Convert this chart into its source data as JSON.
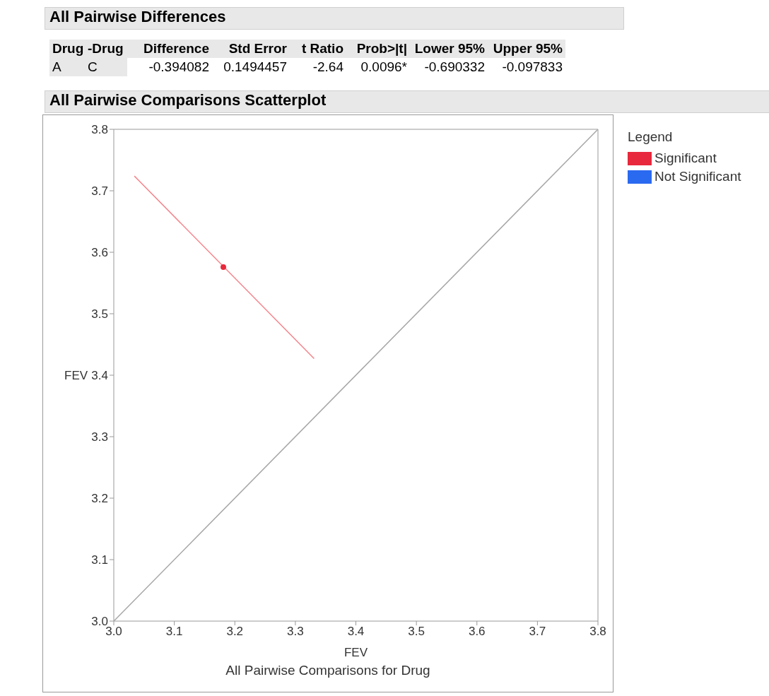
{
  "chart_data": {
    "type": "scatter",
    "title": "All Pairwise Comparisons Scatterplot",
    "xlabel": "FEV",
    "ylabel": "FEV",
    "legend_title": "Legend",
    "legend": "right",
    "xlim": [
      3.0,
      3.8
    ],
    "xticks": [
      {
        "value": 3.0,
        "label": "3.0"
      },
      3.1,
      3.2,
      3.3,
      3.4,
      3.5,
      3.6,
      3.7,
      {
        "value": 3.8,
        "label": "3.8"
      }
    ],
    "ylim": [
      3.0,
      3.8
    ],
    "yticks": [
      {
        "value": 3.0,
        "label": "3.0"
      },
      3.1,
      3.2,
      3.3,
      3.4,
      3.5,
      3.6,
      3.7,
      {
        "value": 3.8,
        "label": "3.8"
      }
    ],
    "series": [
      {
        "type": "line",
        "marker": "none",
        "color": "#a6a6a6",
        "x": [
          3.0,
          3.8
        ],
        "values": [
          3.0,
          3.8
        ]
      },
      {
        "type": "line",
        "marker": "none",
        "color": "#f4848c",
        "x": [
          3.034,
          3.331
        ],
        "values": [
          3.724,
          3.427
        ]
      },
      {
        "name": "Significant",
        "type": "scatter",
        "marker": "circle",
        "color": "#e8283c",
        "x": [
          3.181
        ],
        "values": [
          3.576
        ]
      },
      {
        "name": "Not Significant",
        "color": "#2a6af0"
      }
    ],
    "annotations": [
      "All Pairwise Differences",
      "Drug",
      "-Drug",
      "Difference",
      "Std Error",
      "t Ratio",
      "Prob>|t|",
      "Lower 95%",
      "Upper 95%",
      "A",
      "C",
      "-0.394082",
      "0.1494457",
      "-2.64",
      "0.0096*",
      "-0.690332",
      "-0.097833",
      "All Pairwise Comparisons for Drug"
    ]
  }
}
